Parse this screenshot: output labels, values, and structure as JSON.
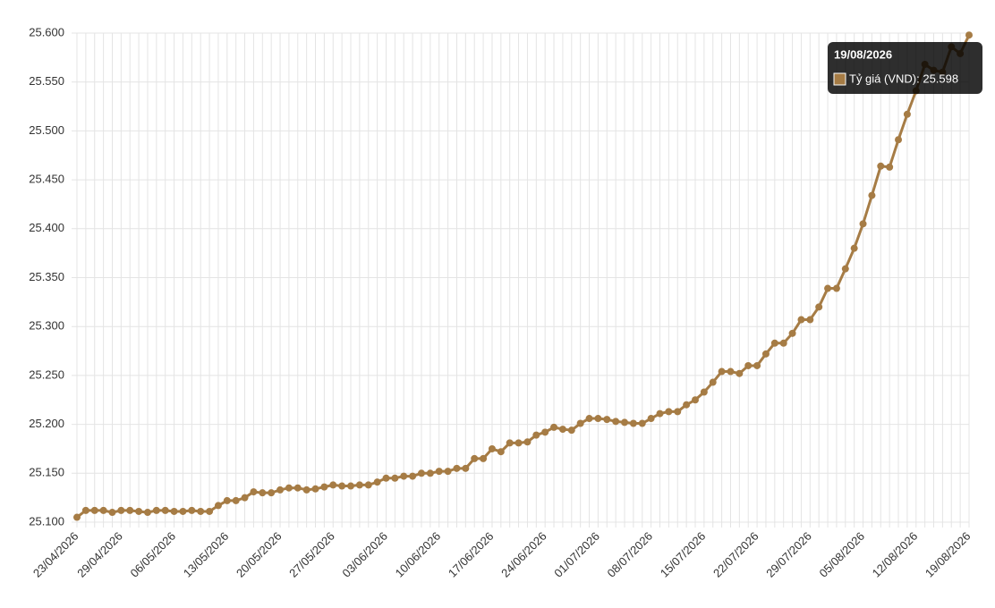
{
  "chart_data": {
    "type": "line",
    "categories": [
      "23/04/2026",
      null,
      null,
      null,
      null,
      "29/04/2026",
      null,
      null,
      null,
      null,
      null,
      "06/05/2026",
      null,
      null,
      null,
      null,
      null,
      "13/05/2026",
      null,
      null,
      null,
      null,
      null,
      "20/05/2026",
      null,
      null,
      null,
      null,
      null,
      "27/05/2026",
      null,
      null,
      null,
      null,
      null,
      "03/06/2026",
      null,
      null,
      null,
      null,
      null,
      "10/06/2026",
      null,
      null,
      null,
      null,
      null,
      "17/06/2026",
      null,
      null,
      null,
      null,
      null,
      "24/06/2026",
      null,
      null,
      null,
      null,
      null,
      "01/07/2026",
      null,
      null,
      null,
      null,
      null,
      "08/07/2026",
      null,
      null,
      null,
      null,
      null,
      "15/07/2026",
      null,
      null,
      null,
      null,
      null,
      "22/07/2026",
      null,
      null,
      null,
      null,
      null,
      "29/07/2026",
      null,
      null,
      null,
      null,
      null,
      "05/08/2026",
      null,
      null,
      null,
      null,
      null,
      "12/08/2026",
      null,
      null,
      null,
      null,
      null,
      "19/08/2026"
    ],
    "values": [
      25105,
      25112,
      25112,
      25112,
      25110,
      25112,
      25112,
      25111,
      25110,
      25112,
      25112,
      25111,
      25111,
      25112,
      25111,
      25111,
      25117,
      25122,
      25122,
      25125,
      25131,
      25130,
      25130,
      25133,
      25135,
      25135,
      25133,
      25134,
      25136,
      25138,
      25137,
      25137,
      25138,
      25138,
      25141,
      25145,
      25145,
      25147,
      25147,
      25150,
      25150,
      25152,
      25152,
      25155,
      25155,
      25165,
      25165,
      25175,
      25172,
      25181,
      25181,
      25182,
      25189,
      25192,
      25197,
      25195,
      25194,
      25201,
      25206,
      25206,
      25205,
      25203,
      25202,
      25201,
      25201,
      25206,
      25211,
      25213,
      25213,
      25220,
      25225,
      25233,
      25243,
      25254,
      25254,
      25252,
      25260,
      25260,
      25272,
      25283,
      25283,
      25293,
      25307,
      25307,
      25320,
      25339,
      25339,
      25359,
      25380,
      25405,
      25434,
      25464,
      25463,
      25491,
      25517,
      25541,
      25568,
      25562,
      25560,
      25586,
      25579,
      25598
    ],
    "color": "#a67c45",
    "ylim": [
      25100,
      25600
    ],
    "yticks": [
      {
        "value": 25100,
        "label": "25.100"
      },
      {
        "value": 25150,
        "label": "25.150"
      },
      {
        "value": 25200,
        "label": "25.200"
      },
      {
        "value": 25250,
        "label": "25.250"
      },
      {
        "value": 25300,
        "label": "25.300"
      },
      {
        "value": 25350,
        "label": "25.350"
      },
      {
        "value": 25400,
        "label": "25.400"
      },
      {
        "value": 25450,
        "label": "25.450"
      },
      {
        "value": 25500,
        "label": "25.500"
      },
      {
        "value": 25550,
        "label": "25.550"
      },
      {
        "value": 25600,
        "label": "25.600"
      }
    ],
    "grid": true,
    "tooltip": {
      "title": "19/08/2026",
      "label": "Tỷ giá (VND): 25.598"
    }
  }
}
